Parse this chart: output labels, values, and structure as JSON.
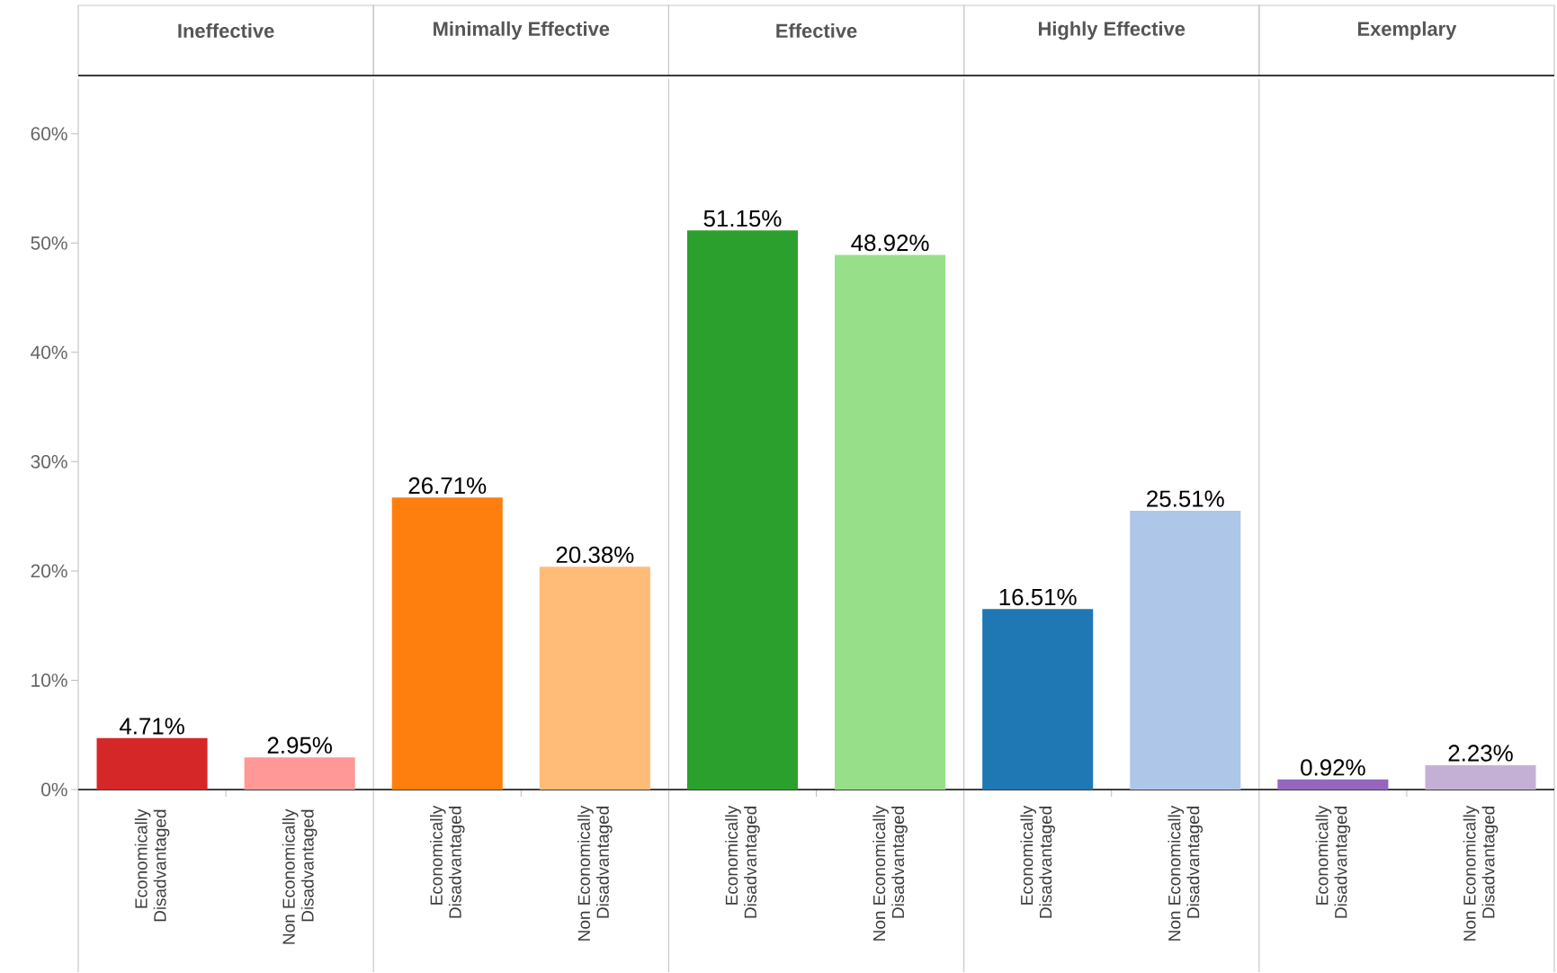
{
  "chart_data": [
    {
      "type": "bar",
      "title": "Ineffective",
      "categories": [
        "Economically Disadvantaged",
        "Non Economically Disadvantaged"
      ],
      "values": [
        4.71,
        2.95
      ],
      "value_labels": [
        "4.71%",
        "2.95%"
      ],
      "colors": [
        "#d62728",
        "#ff9896"
      ],
      "ylim": [
        0,
        65
      ],
      "yticks": [
        {
          "value": 0,
          "label": "0%"
        },
        {
          "value": 10,
          "label": "10%"
        },
        {
          "value": 20,
          "label": "20%"
        },
        {
          "value": 30,
          "label": "30%"
        },
        {
          "value": 40,
          "label": "40%"
        },
        {
          "value": 50,
          "label": "50%"
        },
        {
          "value": 60,
          "label": "60%"
        }
      ]
    },
    {
      "type": "bar",
      "title": "Minimally Effective",
      "categories": [
        "Economically Disadvantaged",
        "Non Economically Disadvantaged"
      ],
      "values": [
        26.71,
        20.38
      ],
      "value_labels": [
        "26.71%",
        "20.38%"
      ],
      "colors": [
        "#ff7f0e",
        "#ffbb78"
      ],
      "ylim": [
        0,
        65
      ],
      "tick_labels": "x"
    },
    {
      "type": "bar",
      "title": "Effective",
      "categories": [
        "Economically Disadvantaged",
        "Non Economically Disadvantaged"
      ],
      "values": [
        51.15,
        48.92
      ],
      "value_labels": [
        "51.15%",
        "48.92%"
      ],
      "colors": [
        "#2ca02c",
        "#98df8a"
      ],
      "ylim": [
        0,
        65
      ],
      "tick_labels": "x"
    },
    {
      "type": "bar",
      "title": "Highly Effective",
      "categories": [
        "Economically Disadvantaged",
        "Non Economically Disadvantaged"
      ],
      "values": [
        16.51,
        25.51
      ],
      "value_labels": [
        "16.51%",
        "25.51%"
      ],
      "colors": [
        "#1f77b4",
        "#aec7e8"
      ],
      "ylim": [
        0,
        65
      ],
      "tick_labels": "x"
    },
    {
      "type": "bar",
      "title": "Exemplary",
      "categories": [
        "Economically Disadvantaged",
        "Non Economically Disadvantaged"
      ],
      "values": [
        0.92,
        2.23
      ],
      "value_labels": [
        "0.92%",
        "2.23%"
      ],
      "colors": [
        "#9467bd",
        "#c5b0d5"
      ],
      "ylim": [
        0,
        65
      ],
      "tick_labels": "x"
    }
  ]
}
